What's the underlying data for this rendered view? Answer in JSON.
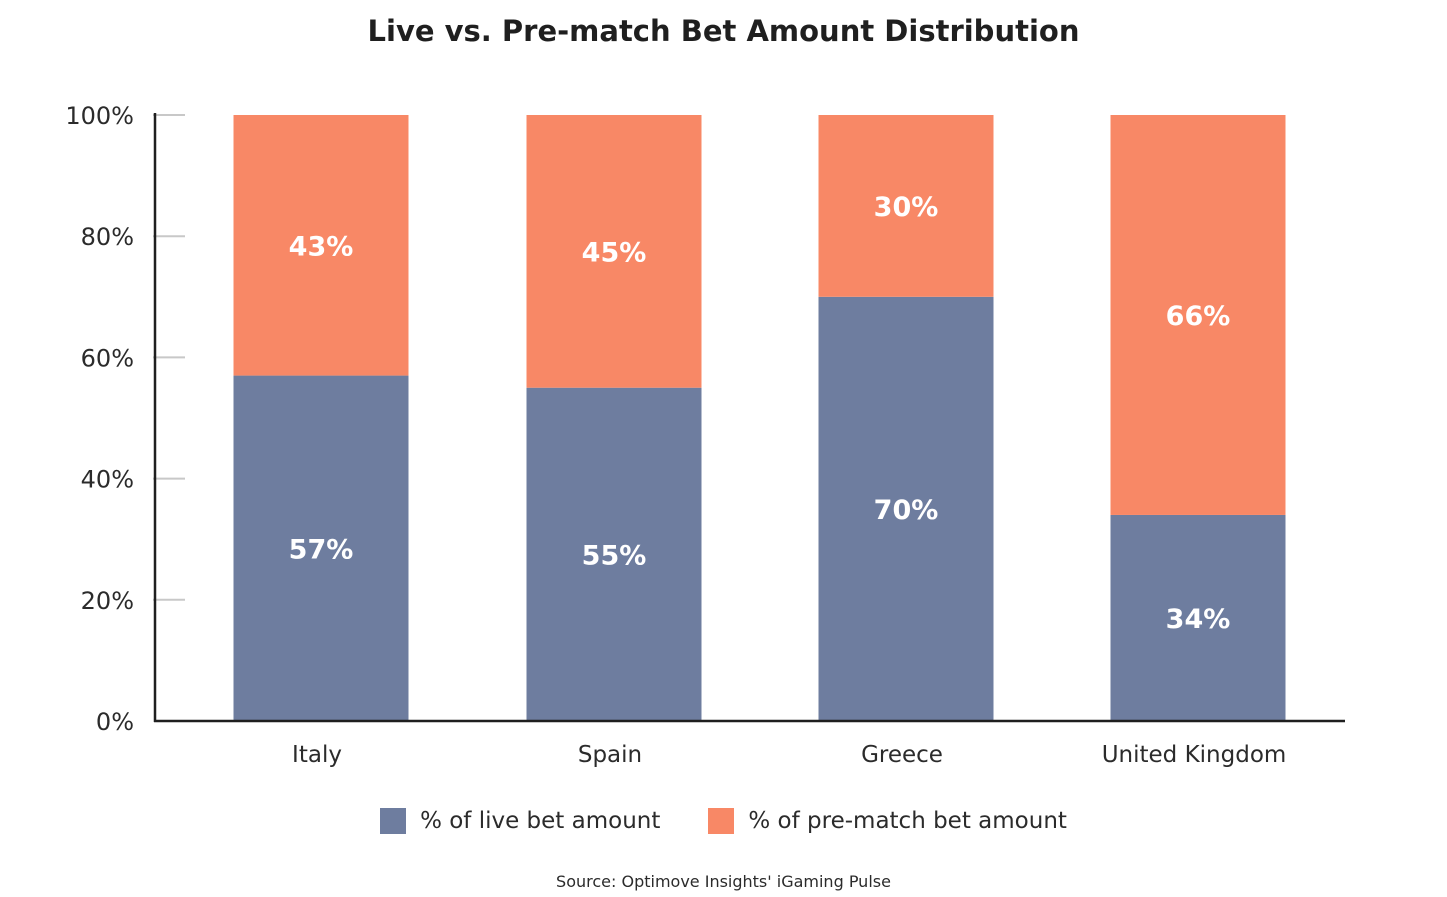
{
  "colors": {
    "live": "#6e7d9f",
    "prematch": "#f88866",
    "axis": "#1f1f1f",
    "tick": "#c8c8c8",
    "label_text": "#ffffff"
  },
  "chart_data": {
    "type": "bar",
    "stacked": true,
    "title": "Live vs. Pre-match Bet Amount Distribution",
    "xlabel": "",
    "ylabel": "",
    "ylim": [
      0,
      100
    ],
    "yticks": [
      "0%",
      "20%",
      "40%",
      "60%",
      "80%",
      "100%"
    ],
    "categories": [
      "Italy",
      "Spain",
      "Greece",
      "United Kingdom"
    ],
    "series": [
      {
        "name": "% of live bet amount",
        "values": [
          57,
          55,
          70,
          34
        ],
        "labels": [
          "57%",
          "55%",
          "70%",
          "34%"
        ],
        "color": "#6e7d9f"
      },
      {
        "name": "% of pre-match bet amount",
        "values": [
          43,
          45,
          30,
          66
        ],
        "labels": [
          "43%",
          "45%",
          "30%",
          "66%"
        ],
        "color": "#f88866"
      }
    ],
    "legend_position": "bottom",
    "grid": false
  },
  "source": "Source: Optimove Insights' iGaming Pulse"
}
